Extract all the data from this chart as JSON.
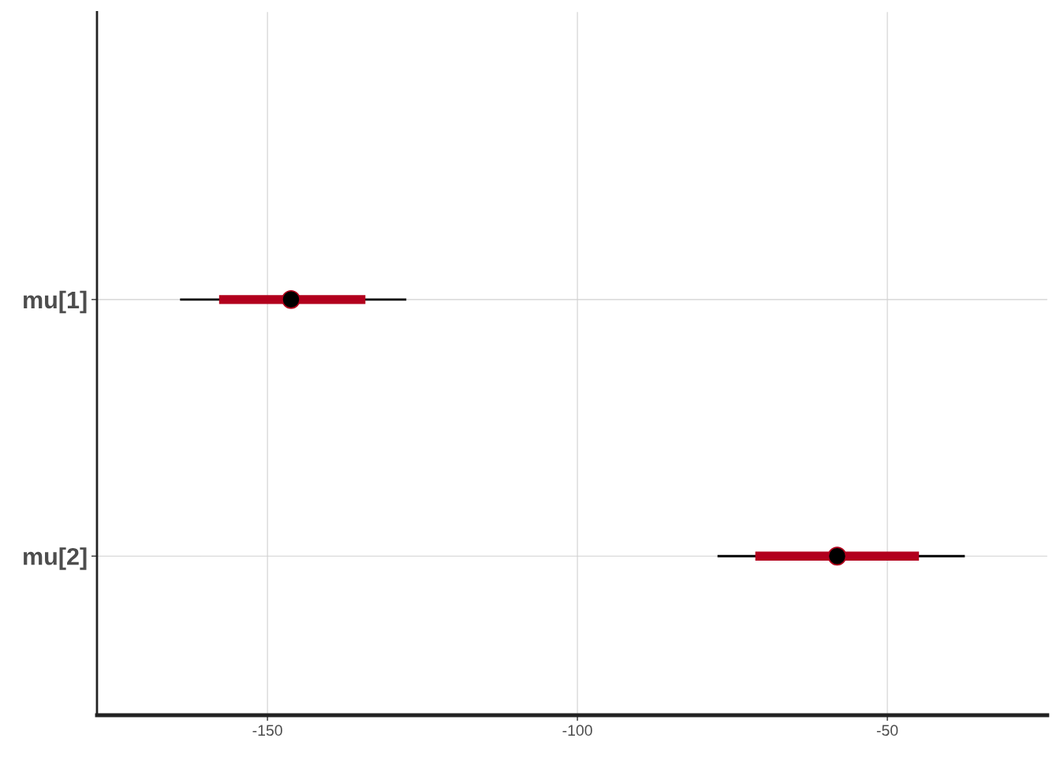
{
  "chart_data": {
    "type": "box",
    "orientation": "horizontal",
    "categories": [
      "mu[1]",
      "mu[2]"
    ],
    "boxes": [
      {
        "low": -164.1,
        "q1": -157.8,
        "median": -146.2,
        "q3": -134.2,
        "high": -127.6
      },
      {
        "low": -77.4,
        "q1": -71.3,
        "median": -58.1,
        "q3": -44.9,
        "high": -37.5
      }
    ],
    "color": "#b2001d",
    "xlim": [
      -177.5,
      -24.2
    ],
    "xticks": [
      -150,
      -100,
      -50
    ],
    "grid": true
  }
}
